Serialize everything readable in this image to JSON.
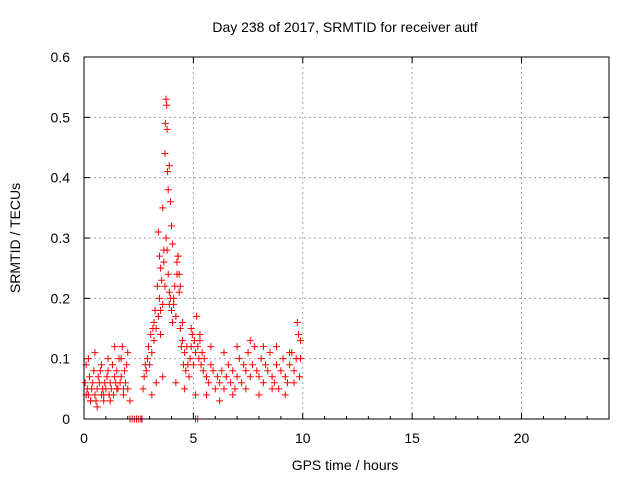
{
  "chart_data": {
    "type": "scatter",
    "title": "Day 238 of 2017, SRMTID for receiver autf",
    "xlabel": "GPS time / hours",
    "ylabel": "SRMTID / TECUs",
    "xlim": [
      0,
      24
    ],
    "ylim": [
      0,
      0.6
    ],
    "xticks": [
      "0",
      "5",
      "10",
      "15",
      "20"
    ],
    "xtick_values": [
      0,
      5,
      10,
      15,
      20
    ],
    "yticks": [
      "0",
      "0.1",
      "0.2",
      "0.3",
      "0.4",
      "0.5",
      "0.6"
    ],
    "ytick_values": [
      0,
      0.1,
      0.2,
      0.3,
      0.4,
      0.5,
      0.6
    ],
    "grid": true,
    "marker": "+",
    "color": "#ff0000",
    "series": [
      {
        "name": "SRMTID",
        "note": "dense scatter; representative sample of points read from the figure",
        "x": [
          0.05,
          0.1,
          0.15,
          0.2,
          0.25,
          0.3,
          0.35,
          0.4,
          0.45,
          0.5,
          0.55,
          0.6,
          0.65,
          0.7,
          0.75,
          0.8,
          0.85,
          0.9,
          0.95,
          1.0,
          1.05,
          1.1,
          1.15,
          1.2,
          1.25,
          1.3,
          1.35,
          1.4,
          1.45,
          1.5,
          1.55,
          1.6,
          1.65,
          1.7,
          1.75,
          1.8,
          1.85,
          1.9,
          1.95,
          2.0,
          2.7,
          2.75,
          2.8,
          2.85,
          2.9,
          2.95,
          3.0,
          3.05,
          3.1,
          3.15,
          3.2,
          3.25,
          3.3,
          3.35,
          3.4,
          3.45,
          3.5,
          3.55,
          3.6,
          3.65,
          3.7,
          3.75,
          3.8,
          3.85,
          3.9,
          3.95,
          4.0,
          4.05,
          4.1,
          4.15,
          4.2,
          4.25,
          4.3,
          4.35,
          4.4,
          4.45,
          4.5,
          4.55,
          4.6,
          4.65,
          4.7,
          4.75,
          4.8,
          4.85,
          4.9,
          4.95,
          5.0,
          5.05,
          5.1,
          5.15,
          5.2,
          5.25,
          5.3,
          5.35,
          5.4,
          5.45,
          5.5,
          5.6,
          5.7,
          5.8,
          5.9,
          6.0,
          6.1,
          6.2,
          6.3,
          6.4,
          6.5,
          6.6,
          6.7,
          6.8,
          6.9,
          7.0,
          7.1,
          7.2,
          7.3,
          7.4,
          7.5,
          7.6,
          7.7,
          7.8,
          7.9,
          8.0,
          8.1,
          8.2,
          8.3,
          8.4,
          8.5,
          8.6,
          8.7,
          8.8,
          8.9,
          9.0,
          9.1,
          9.2,
          9.3,
          9.4,
          9.5,
          9.6,
          9.7,
          9.8,
          9.9,
          3.7,
          3.72,
          3.75,
          3.78,
          3.8,
          3.82,
          3.85,
          3.9,
          3.95,
          4.0,
          4.05,
          3.4,
          3.45,
          3.5,
          4.3,
          4.35,
          4.4,
          4.25,
          3.6,
          3.65,
          0.1,
          0.3,
          0.6,
          0.9,
          1.2,
          1.5,
          1.8,
          2.1,
          3.1,
          3.3,
          3.6,
          4.2,
          4.6,
          5.1,
          5.6,
          6.2,
          6.8,
          7.4,
          8.0,
          8.6,
          9.2,
          9.6,
          9.85,
          0.2,
          0.5,
          0.8,
          1.1,
          1.4,
          1.7,
          2.0,
          3.2,
          3.5,
          3.9,
          4.1,
          4.5,
          4.9,
          5.3,
          5.8,
          6.4,
          7.0,
          7.6,
          8.2,
          8.8,
          9.4,
          9.75,
          9.9,
          2.1,
          2.2,
          2.3,
          2.4,
          2.5,
          2.6,
          2.65,
          5.1,
          5.2
        ],
        "y": [
          0.06,
          0.09,
          0.05,
          0.04,
          0.07,
          0.03,
          0.05,
          0.06,
          0.08,
          0.04,
          0.03,
          0.05,
          0.07,
          0.06,
          0.08,
          0.04,
          0.05,
          0.03,
          0.06,
          0.05,
          0.07,
          0.08,
          0.04,
          0.06,
          0.05,
          0.09,
          0.04,
          0.07,
          0.06,
          0.08,
          0.05,
          0.1,
          0.06,
          0.07,
          0.12,
          0.05,
          0.08,
          0.06,
          0.09,
          0.05,
          0.05,
          0.07,
          0.09,
          0.08,
          0.1,
          0.12,
          0.09,
          0.14,
          0.11,
          0.15,
          0.13,
          0.18,
          0.15,
          0.22,
          0.17,
          0.2,
          0.14,
          0.23,
          0.19,
          0.26,
          0.22,
          0.3,
          0.28,
          0.24,
          0.21,
          0.2,
          0.18,
          0.16,
          0.19,
          0.22,
          0.17,
          0.24,
          0.27,
          0.21,
          0.15,
          0.12,
          0.13,
          0.09,
          0.11,
          0.08,
          0.12,
          0.09,
          0.07,
          0.1,
          0.12,
          0.14,
          0.09,
          0.13,
          0.11,
          0.17,
          0.12,
          0.1,
          0.14,
          0.09,
          0.11,
          0.08,
          0.1,
          0.07,
          0.06,
          0.09,
          0.08,
          0.05,
          0.07,
          0.06,
          0.08,
          0.05,
          0.07,
          0.09,
          0.06,
          0.08,
          0.05,
          0.07,
          0.1,
          0.06,
          0.09,
          0.08,
          0.11,
          0.07,
          0.09,
          0.12,
          0.08,
          0.07,
          0.1,
          0.06,
          0.09,
          0.08,
          0.11,
          0.07,
          0.06,
          0.09,
          0.05,
          0.08,
          0.1,
          0.07,
          0.06,
          0.09,
          0.11,
          0.08,
          0.1,
          0.14,
          0.1,
          0.44,
          0.49,
          0.53,
          0.52,
          0.48,
          0.41,
          0.38,
          0.42,
          0.36,
          0.32,
          0.29,
          0.31,
          0.27,
          0.25,
          0.27,
          0.24,
          0.22,
          0.26,
          0.35,
          0.28,
          0.04,
          0.03,
          0.02,
          0.04,
          0.03,
          0.05,
          0.04,
          0.03,
          0.04,
          0.06,
          0.07,
          0.06,
          0.05,
          0.04,
          0.04,
          0.03,
          0.04,
          0.05,
          0.04,
          0.05,
          0.04,
          0.06,
          0.07,
          0.1,
          0.11,
          0.09,
          0.1,
          0.12,
          0.1,
          0.11,
          0.16,
          0.18,
          0.19,
          0.2,
          0.16,
          0.15,
          0.13,
          0.12,
          0.11,
          0.12,
          0.13,
          0.12,
          0.12,
          0.11,
          0.16,
          0.13,
          0.0,
          0.0,
          0.0,
          0.0,
          0.0,
          0.0,
          0.0,
          0.0,
          0.0
        ]
      }
    ]
  }
}
